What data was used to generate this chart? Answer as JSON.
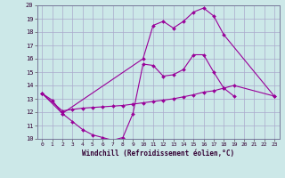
{
  "xlabel": "Windchill (Refroidissement éolien,°C)",
  "line_color": "#990099",
  "bg_color": "#cce8e8",
  "grid_color": "#aaaacc",
  "ylim": [
    10,
    20
  ],
  "yticks": [
    10,
    11,
    12,
    13,
    14,
    15,
    16,
    17,
    18,
    19,
    20
  ],
  "xticks": [
    0,
    1,
    2,
    3,
    4,
    5,
    6,
    7,
    8,
    9,
    10,
    11,
    12,
    13,
    14,
    15,
    16,
    17,
    18,
    19,
    20,
    21,
    22,
    23
  ],
  "line1_x": [
    0,
    1,
    2,
    3,
    4,
    5,
    6,
    7,
    8,
    9,
    10,
    11,
    12,
    13,
    14,
    15,
    16,
    17,
    18,
    19
  ],
  "line1_y": [
    13.4,
    12.9,
    11.9,
    11.3,
    10.7,
    10.3,
    10.1,
    9.9,
    10.1,
    11.9,
    15.6,
    15.5,
    14.7,
    14.8,
    15.2,
    16.3,
    16.3,
    15.0,
    13.8,
    13.2
  ],
  "line2_x": [
    0,
    2,
    10,
    11,
    12,
    13,
    14,
    15,
    16,
    17,
    18,
    23
  ],
  "line2_y": [
    13.4,
    11.9,
    16.0,
    18.5,
    18.8,
    18.3,
    18.8,
    19.5,
    19.8,
    19.2,
    17.8,
    13.2
  ],
  "line3_x": [
    0,
    2,
    3,
    4,
    5,
    6,
    7,
    8,
    9,
    10,
    11,
    12,
    13,
    14,
    15,
    16,
    17,
    18,
    19,
    23
  ],
  "line3_y": [
    13.4,
    12.1,
    12.2,
    12.3,
    12.35,
    12.4,
    12.45,
    12.5,
    12.6,
    12.7,
    12.8,
    12.9,
    13.0,
    13.15,
    13.3,
    13.5,
    13.6,
    13.8,
    14.0,
    13.2
  ]
}
